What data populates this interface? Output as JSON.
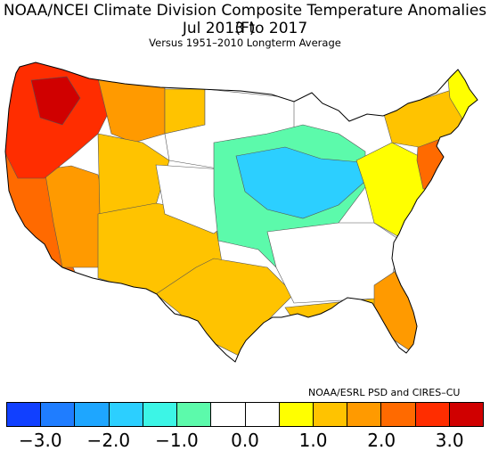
{
  "title_line1": "NOAA/NCEI Climate Division Composite Temperature Anomalies (F)",
  "title_line2": "Jul 2013 to 2017",
  "subtitle": "Versus 1951–2010 Longterm Average",
  "credit": "NOAA/ESRL PSD and CIRES–CU",
  "legend": {
    "colors": [
      "#1140ff",
      "#1f7dff",
      "#1ea6ff",
      "#2ccfff",
      "#3cf5e6",
      "#5cfaab",
      "#ffffff",
      "#ffffff",
      "#ffff00",
      "#ffc300",
      "#ff9a00",
      "#ff6a00",
      "#ff2d00",
      "#d00000"
    ],
    "ticks": [
      "−3.0",
      "−2.0",
      "−1.0",
      "0.0",
      "1.0",
      "2.0",
      "3.0"
    ],
    "tick_values": [
      -3.0,
      -2.0,
      -1.0,
      0.0,
      1.0,
      2.0,
      3.0
    ],
    "range": [
      -3.5,
      3.5
    ]
  },
  "regions": [
    {
      "name": "northwest-core",
      "color": "#ff2d00"
    },
    {
      "name": "puget-sound",
      "color": "#d00000"
    },
    {
      "name": "west-coast",
      "color": "#ff6a00"
    },
    {
      "name": "california-interior",
      "color": "#ff9a00"
    },
    {
      "name": "great-basin",
      "color": "#ffc300"
    },
    {
      "name": "northern-rockies",
      "color": "#ff9a00"
    },
    {
      "name": "montana-plains",
      "color": "#ffc300"
    },
    {
      "name": "southwest",
      "color": "#ffc300"
    },
    {
      "name": "northern-plains",
      "color": "#ffffff"
    },
    {
      "name": "central-great-plains",
      "color": "#ffffff"
    },
    {
      "name": "midwest-cool",
      "color": "#5cfaab"
    },
    {
      "name": "midwest-cold-core",
      "color": "#2ccfff"
    },
    {
      "name": "texas-south",
      "color": "#ffc300"
    },
    {
      "name": "gulf-coast",
      "color": "#ffc300"
    },
    {
      "name": "florida",
      "color": "#ff9a00"
    },
    {
      "name": "southeast",
      "color": "#ffffff"
    },
    {
      "name": "appalachia",
      "color": "#ffff00"
    },
    {
      "name": "mid-atlantic",
      "color": "#ff6a00"
    },
    {
      "name": "northeast",
      "color": "#ffc300"
    },
    {
      "name": "maine",
      "color": "#ffff00"
    }
  ]
}
